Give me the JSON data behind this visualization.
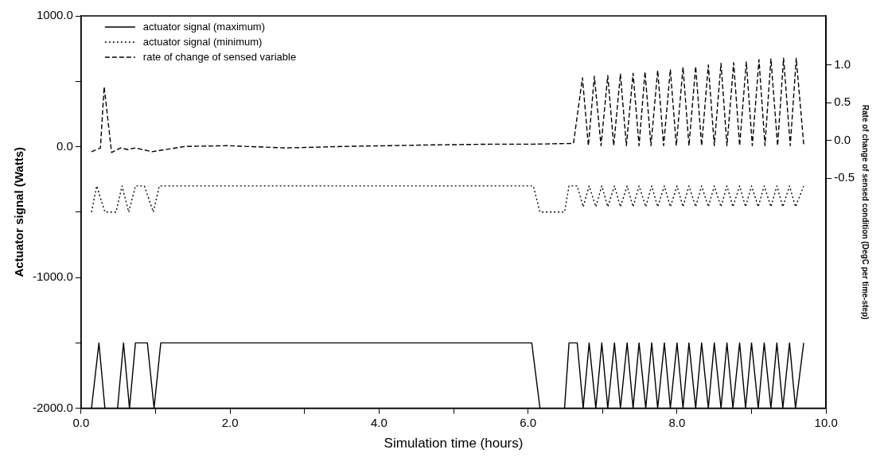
{
  "chart_data": {
    "type": "line",
    "xlabel": "Simulation time (hours)",
    "ylabel": "Actuator signal (Watts)",
    "y2label": "Rate of change of sensed condition (DegC per time-step)",
    "xlim": [
      0,
      10
    ],
    "xticks": [
      {
        "value": 0,
        "label": "0.0"
      },
      {
        "value": 1,
        "label": null
      },
      {
        "value": 2,
        "label": "2.0"
      },
      {
        "value": 3,
        "label": null
      },
      {
        "value": 4,
        "label": "4.0"
      },
      {
        "value": 5,
        "label": null
      },
      {
        "value": 6,
        "label": "6.0"
      },
      {
        "value": 7,
        "label": null
      },
      {
        "value": 8,
        "label": "8.0"
      },
      {
        "value": 9,
        "label": null
      },
      {
        "value": 10,
        "label": "10.0"
      }
    ],
    "ylim": [
      -2000,
      1000
    ],
    "yticks": [
      {
        "value": -2000,
        "label": "-2000.0"
      },
      {
        "value": -1500,
        "label": null
      },
      {
        "value": -1000,
        "label": "-1000.0"
      },
      {
        "value": -500,
        "label": null
      },
      {
        "value": 0,
        "label": "0.0"
      },
      {
        "value": 500,
        "label": null
      },
      {
        "value": 1000,
        "label": "1000.0"
      }
    ],
    "y2lim": [
      -3.55,
      1.65
    ],
    "y2ticks": [
      {
        "value": -0.5,
        "label": "-0.5"
      },
      {
        "value": 0,
        "label": "0.0"
      },
      {
        "value": 0.5,
        "label": "0.5"
      },
      {
        "value": 1,
        "label": "1.0"
      }
    ],
    "grid": false,
    "legend": "top left",
    "marker": "none",
    "series": [
      {
        "name": "actuator signal (maximum)",
        "color": "#000000",
        "line_style": "solid",
        "x": [
          0.14,
          0.24,
          0.32,
          0.49,
          0.57,
          0.65,
          0.73,
          0.89,
          0.98,
          1.07,
          6.05,
          6.16,
          6.49,
          6.55,
          6.66,
          6.74,
          6.82,
          6.91,
          6.99,
          7.07,
          7.16,
          7.24,
          7.33,
          7.41,
          7.49,
          7.58,
          7.66,
          7.74,
          7.83,
          7.91,
          8.0,
          8.08,
          8.16,
          8.25,
          8.33,
          8.42,
          8.5,
          8.59,
          8.67,
          8.75,
          8.84,
          8.92,
          9.0,
          9.09,
          9.17,
          9.26,
          9.34,
          9.42,
          9.51,
          9.59,
          9.7
        ],
        "values": [
          -2000,
          -1500,
          -2000,
          -2000,
          -1500,
          -2000,
          -1500,
          -1500,
          -2000,
          -1500,
          -1500,
          -2000,
          -2000,
          -1500,
          -1500,
          -2000,
          -1500,
          -2000,
          -1500,
          -2000,
          -1500,
          -2000,
          -1500,
          -2000,
          -1500,
          -2000,
          -1500,
          -2000,
          -1500,
          -2000,
          -1500,
          -2000,
          -1500,
          -2000,
          -1500,
          -2000,
          -1500,
          -2000,
          -1500,
          -2000,
          -1500,
          -2000,
          -1500,
          -2000,
          -1500,
          -2000,
          -1500,
          -2000,
          -1500,
          -2000,
          -1500
        ]
      },
      {
        "name": "actuator signal (minimum)",
        "color": "#000000",
        "line_style": "dotted",
        "x": [
          0.14,
          0.21,
          0.32,
          0.47,
          0.55,
          0.64,
          0.73,
          0.85,
          0.97,
          1.05,
          6.07,
          6.16,
          6.49,
          6.55,
          6.66,
          6.74,
          6.82,
          6.91,
          6.99,
          7.07,
          7.16,
          7.24,
          7.33,
          7.41,
          7.49,
          7.58,
          7.66,
          7.74,
          7.83,
          7.91,
          8.0,
          8.08,
          8.16,
          8.25,
          8.33,
          8.42,
          8.5,
          8.59,
          8.67,
          8.75,
          8.84,
          8.92,
          9.0,
          9.09,
          9.17,
          9.26,
          9.34,
          9.42,
          9.51,
          9.59,
          9.7
        ],
        "values": [
          -500,
          -300,
          -500,
          -500,
          -300,
          -500,
          -300,
          -300,
          -500,
          -300,
          -300,
          -500,
          -500,
          -300,
          -300,
          -460,
          -300,
          -460,
          -300,
          -460,
          -300,
          -460,
          -300,
          -460,
          -300,
          -460,
          -300,
          -460,
          -300,
          -460,
          -300,
          -460,
          -300,
          -460,
          -300,
          -460,
          -300,
          -460,
          -300,
          -460,
          -300,
          -460,
          -300,
          -460,
          -300,
          -460,
          -300,
          -460,
          -300,
          -460,
          -300
        ]
      },
      {
        "name": "rate of change of sensed variable",
        "color": "#000000",
        "line_style": "dashed",
        "axis": "y2",
        "x": [
          0.14,
          0.26,
          0.31,
          0.41,
          0.53,
          0.62,
          0.73,
          0.95,
          1.4,
          1.96,
          2.75,
          3.53,
          4.72,
          5.51,
          6.07,
          6.61,
          6.73,
          6.81,
          6.89,
          6.98,
          7.07,
          7.15,
          7.24,
          7.32,
          7.41,
          7.49,
          7.57,
          7.65,
          7.74,
          7.82,
          7.91,
          7.99,
          8.08,
          8.16,
          8.25,
          8.33,
          8.42,
          8.5,
          8.59,
          8.67,
          8.76,
          8.84,
          8.93,
          9.01,
          9.1,
          9.18,
          9.26,
          9.35,
          9.43,
          9.52,
          9.6,
          9.7
        ],
        "values": [
          -0.15,
          -0.1,
          0.71,
          -0.16,
          -0.1,
          -0.12,
          -0.1,
          -0.15,
          -0.08,
          -0.07,
          -0.1,
          -0.08,
          -0.06,
          -0.05,
          -0.05,
          -0.04,
          0.83,
          -0.07,
          0.85,
          -0.07,
          0.86,
          -0.07,
          0.88,
          -0.07,
          0.89,
          -0.07,
          0.91,
          -0.07,
          0.93,
          -0.07,
          0.94,
          -0.07,
          0.97,
          -0.07,
          0.98,
          -0.07,
          1.0,
          -0.07,
          1.02,
          -0.07,
          1.03,
          -0.07,
          1.04,
          -0.07,
          1.07,
          -0.07,
          1.08,
          -0.07,
          1.09,
          -0.07,
          1.09,
          -0.05
        ]
      }
    ]
  }
}
